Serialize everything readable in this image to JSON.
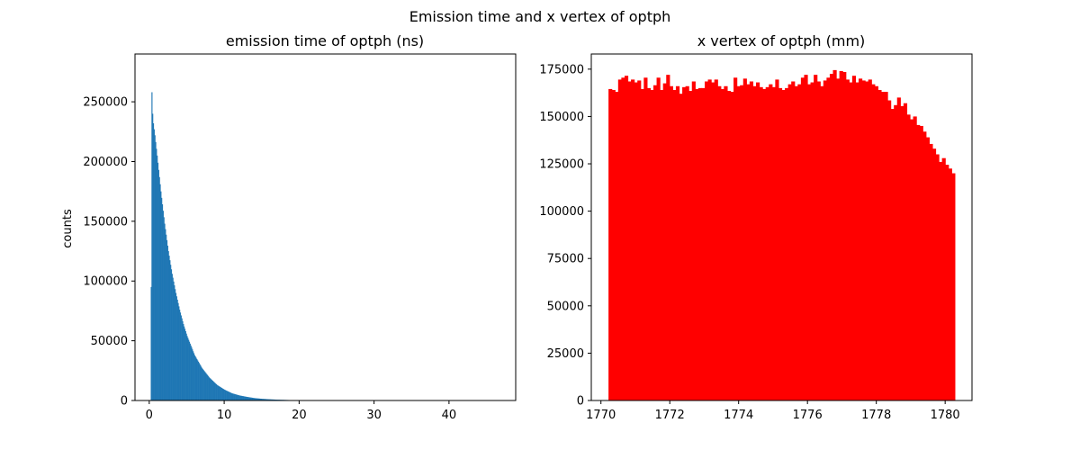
{
  "figure": {
    "suptitle": "Emission time and x vertex of optph"
  },
  "chart_data": [
    {
      "type": "bar",
      "title": "emission time of optph (ns)",
      "xlabel": "",
      "ylabel": "counts",
      "xlim": [
        -1.9,
        48.9
      ],
      "ylim": [
        0,
        290000
      ],
      "xticks": [
        0,
        10,
        20,
        30,
        40
      ],
      "yticks": [
        0,
        50000,
        100000,
        150000,
        200000,
        250000
      ],
      "xtick_labels": [
        "0",
        "10",
        "20",
        "30",
        "40"
      ],
      "ytick_labels": [
        "0",
        "50000",
        "100000",
        "150000",
        "200000",
        "250000"
      ],
      "color": "#1f77b4",
      "grid": false,
      "series": [
        {
          "x": [
            0.2,
            0.3,
            0.4,
            0.5,
            0.7,
            1.0,
            1.5,
            2.0,
            2.5,
            3.0,
            3.5,
            4.0,
            4.5,
            5.0,
            6.0,
            7.0,
            8.0,
            9.0,
            10.0,
            11.0,
            12.0,
            13.0,
            14.0,
            15.0,
            16.0,
            17.0,
            18.0,
            19.0,
            20.0,
            25.0,
            30.0,
            40.0,
            47.0
          ],
          "values": [
            95000,
            258000,
            240000,
            232000,
            222000,
            205000,
            175000,
            148000,
            125000,
            106000,
            90000,
            76000,
            64000,
            54000,
            38000,
            27000,
            19000,
            13000,
            9000,
            6000,
            4200,
            3000,
            2000,
            1400,
            1000,
            700,
            500,
            300,
            200,
            80,
            30,
            5,
            0
          ]
        }
      ]
    },
    {
      "type": "bar",
      "title": "x vertex of optph (mm)",
      "xlabel": "",
      "ylabel": "",
      "xlim": [
        1769.72,
        1780.78
      ],
      "ylim": [
        0,
        183000
      ],
      "xticks": [
        1770,
        1772,
        1774,
        1776,
        1778,
        1780
      ],
      "yticks": [
        0,
        25000,
        50000,
        75000,
        100000,
        125000,
        150000,
        175000
      ],
      "xtick_labels": [
        "1770",
        "1772",
        "1774",
        "1776",
        "1778",
        "1780"
      ],
      "ytick_labels": [
        "0",
        "25000",
        "50000",
        "75000",
        "100000",
        "125000",
        "150000",
        "175000"
      ],
      "color": "#ff0000",
      "grid": false,
      "series": [
        {
          "bin_start": 1770.22,
          "bin_end": 1780.28,
          "values": [
            164500,
            164000,
            163000,
            169500,
            170500,
            171500,
            168500,
            169500,
            168000,
            169000,
            164500,
            170500,
            165000,
            164000,
            166500,
            170500,
            164000,
            167500,
            172000,
            166000,
            164000,
            166000,
            162000,
            165500,
            166000,
            163500,
            168500,
            164500,
            165000,
            165000,
            168500,
            169500,
            168000,
            169500,
            166000,
            164500,
            166000,
            163500,
            163000,
            170500,
            166000,
            166500,
            170000,
            167000,
            168500,
            166000,
            168000,
            165500,
            164500,
            165500,
            167000,
            165500,
            169500,
            165000,
            164000,
            165000,
            167000,
            168500,
            166000,
            167000,
            170500,
            172000,
            167000,
            168000,
            172000,
            168500,
            166000,
            169000,
            170500,
            172500,
            174500,
            170000,
            174000,
            173500,
            169500,
            168000,
            171500,
            168000,
            170000,
            169000,
            168500,
            169500,
            167000,
            166000,
            164000,
            163000,
            163000,
            158500,
            154000,
            156000,
            160000,
            155500,
            157000,
            151000,
            148500,
            150000,
            145500,
            145000,
            142000,
            139000,
            135500,
            133000,
            130000,
            126000,
            128000,
            124500,
            122500,
            120000
          ]
        }
      ]
    }
  ]
}
